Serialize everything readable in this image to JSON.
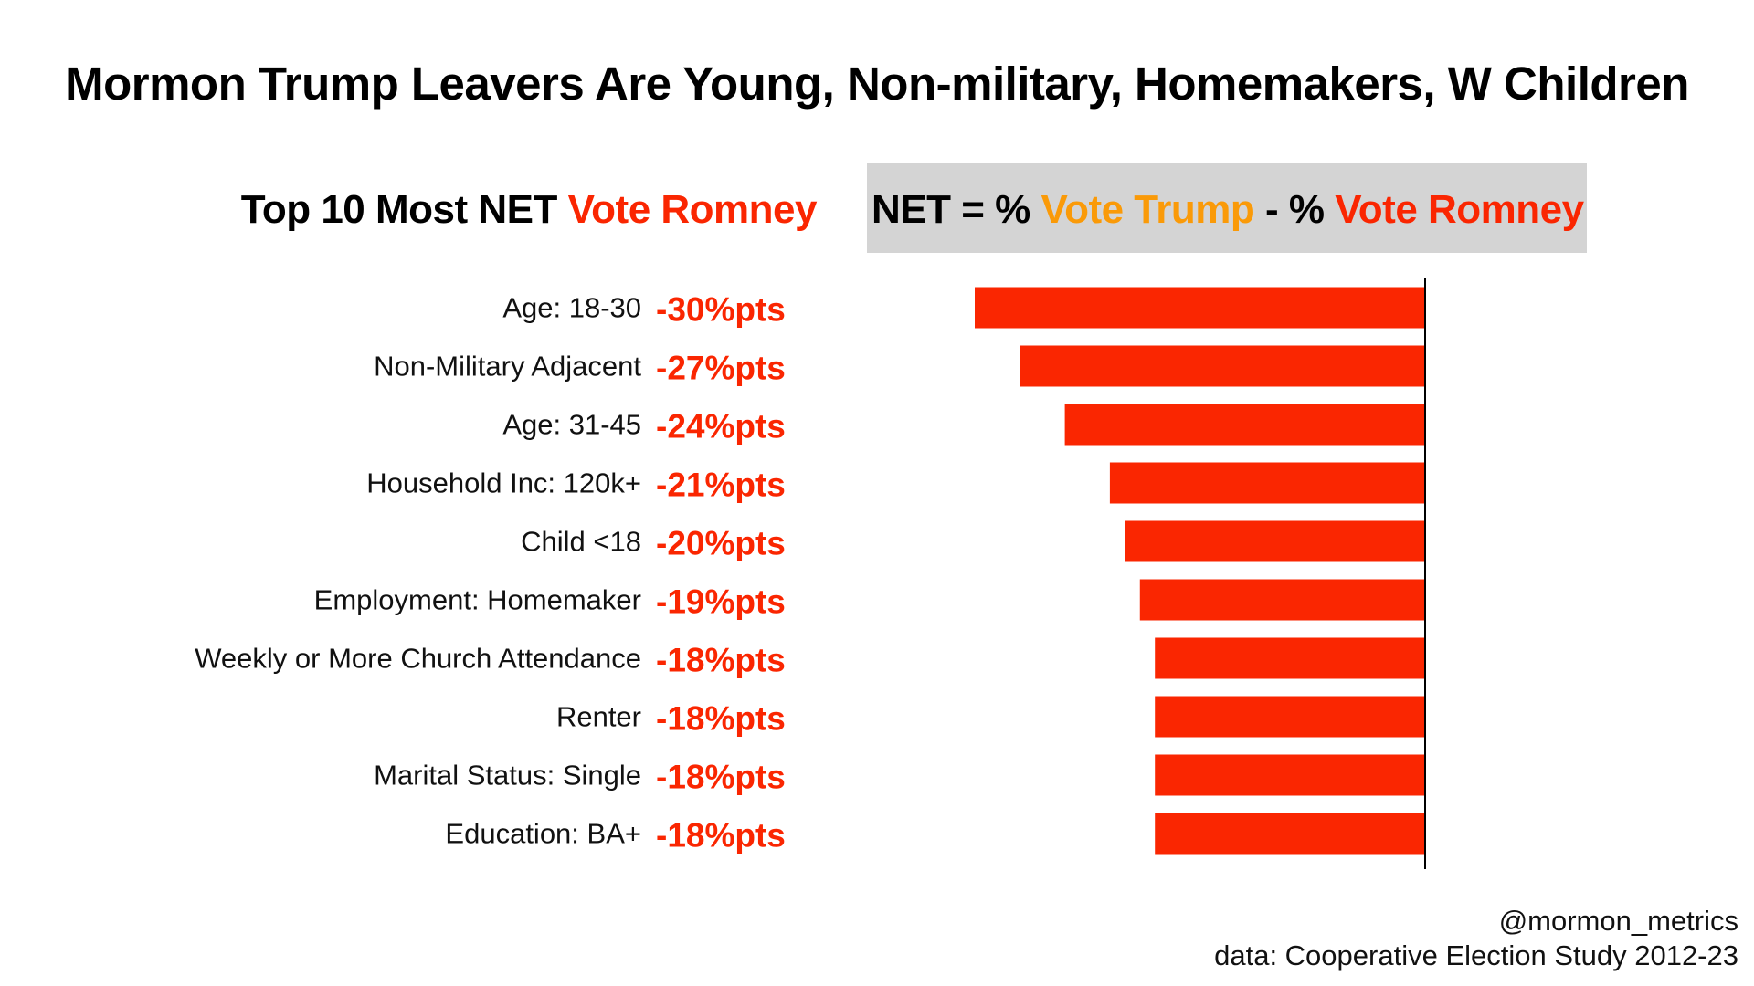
{
  "header": {
    "title": "Mormon Trump Leavers Are Young, Non-military, Homemakers, W Children",
    "subtitle_prefix": "Top 10 Most NET ",
    "subtitle_highlight": "Vote Romney",
    "formula_prefix": "NET = % ",
    "formula_trump": "Vote Trump",
    "formula_middle": " - % ",
    "formula_romney": "Vote Romney"
  },
  "colors": {
    "bar": "#fa2601",
    "romney": "#fa2601",
    "trump": "#fa9a08",
    "formula_background": "#d4d4d4",
    "axis": "#000000"
  },
  "chart_data": {
    "type": "bar",
    "orientation": "horizontal",
    "title": "Top 10 Most NET Vote Romney",
    "categories": [
      "Age: 18-30",
      "Non-Military Adjacent",
      "Age: 31-45",
      "Household Inc: 120k+",
      "Child <18",
      "Employment: Homemaker",
      "Weekly or More Church Attendance",
      "Renter",
      "Marital Status: Single",
      "Education: BA+"
    ],
    "values": [
      -30,
      -27,
      -24,
      -21,
      -20,
      -19,
      -18,
      -18,
      -18,
      -18
    ],
    "value_labels": [
      "-30%pts",
      "-27%pts",
      "-24%pts",
      "-21%pts",
      "-20%pts",
      "-19%pts",
      "-18%pts",
      "-18%pts",
      "-18%pts",
      "-18%pts"
    ],
    "xlim": [
      -30,
      0
    ],
    "xlabel": "",
    "ylabel": "",
    "grid": false,
    "zero_line": true
  },
  "credit": {
    "handle": "@mormon_metrics",
    "source": "data: Cooperative Election Study 2012-23"
  }
}
